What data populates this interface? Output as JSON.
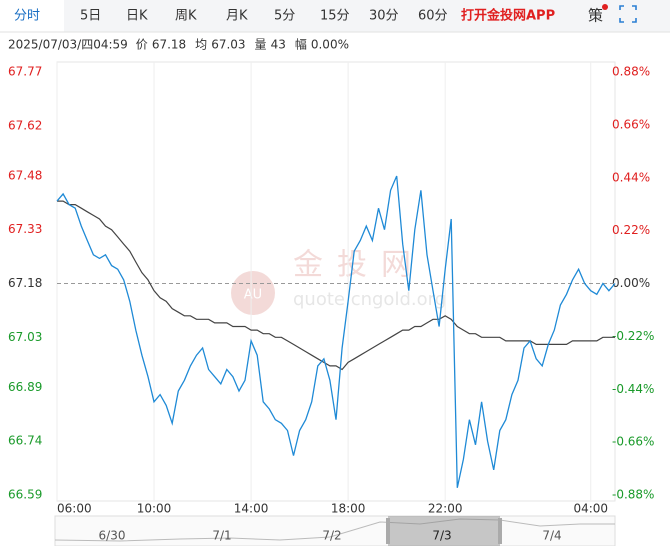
{
  "tabs": [
    "分时",
    "5日",
    "日K",
    "周K",
    "月K",
    "5分",
    "15分",
    "30分",
    "60分"
  ],
  "promo": "打开金投网APP",
  "strategy": "策",
  "info": {
    "date": "2025/07/03/四04:59",
    "fields": [
      {
        "label": "价",
        "value": "67.18"
      },
      {
        "label": "均",
        "value": "67.03"
      },
      {
        "label": "量",
        "value": "43"
      },
      {
        "label": "幅",
        "value": "0.00%"
      }
    ]
  },
  "watermark": {
    "logo": "AU",
    "name": "金投网",
    "site": "quote.cngold.org"
  },
  "navigator": {
    "labels": [
      "6/30",
      "7/1",
      "7/2",
      "7/3",
      "7/4"
    ],
    "selected": 3
  },
  "chart_data": {
    "type": "line",
    "x": [
      "06:00",
      "06:15",
      "06:30",
      "06:45",
      "07:00",
      "07:15",
      "07:30",
      "07:45",
      "08:00",
      "08:15",
      "08:30",
      "08:45",
      "09:00",
      "09:15",
      "09:30",
      "09:45",
      "10:00",
      "10:15",
      "10:30",
      "10:45",
      "11:00",
      "11:15",
      "11:30",
      "11:45",
      "12:00",
      "12:15",
      "12:30",
      "12:45",
      "13:00",
      "13:15",
      "13:30",
      "13:45",
      "14:00",
      "14:15",
      "14:30",
      "14:45",
      "15:00",
      "15:15",
      "15:30",
      "15:45",
      "16:00",
      "16:15",
      "16:30",
      "16:45",
      "17:00",
      "17:15",
      "17:30",
      "17:45",
      "18:00",
      "18:15",
      "18:30",
      "18:45",
      "19:00",
      "19:15",
      "19:30",
      "19:45",
      "20:00",
      "20:15",
      "20:30",
      "20:45",
      "21:00",
      "21:15",
      "21:30",
      "21:45",
      "22:00",
      "22:15",
      "22:30",
      "22:45",
      "23:00",
      "23:15",
      "23:30",
      "23:45",
      "00:00",
      "00:15",
      "00:30",
      "00:45",
      "01:00",
      "01:15",
      "01:30",
      "01:45",
      "02:00",
      "02:15",
      "02:30",
      "02:45",
      "03:00",
      "03:15",
      "03:30",
      "03:45",
      "04:00",
      "04:15",
      "04:30",
      "04:45",
      "05:00"
    ],
    "series": [
      {
        "color": "#1f8ad6",
        "values": [
          67.41,
          67.43,
          67.4,
          67.39,
          67.34,
          67.3,
          67.26,
          67.25,
          67.26,
          67.23,
          67.22,
          67.19,
          67.13,
          67.05,
          66.98,
          66.92,
          66.85,
          66.87,
          66.84,
          66.79,
          66.88,
          66.91,
          66.95,
          66.98,
          67.0,
          66.94,
          66.92,
          66.9,
          66.94,
          66.92,
          66.88,
          66.91,
          67.02,
          66.98,
          66.85,
          66.83,
          66.8,
          66.79,
          66.77,
          66.7,
          66.77,
          66.8,
          66.85,
          66.95,
          66.97,
          66.91,
          66.8,
          67.0,
          67.13,
          67.27,
          67.3,
          67.34,
          67.3,
          67.39,
          67.33,
          67.44,
          67.48,
          67.29,
          67.16,
          67.33,
          67.44,
          67.26,
          67.16,
          67.06,
          67.22,
          67.36,
          66.61,
          66.69,
          66.8,
          66.73,
          66.85,
          66.74,
          66.66,
          66.77,
          66.8,
          66.87,
          66.91,
          67.0,
          67.02,
          66.97,
          66.95,
          67.01,
          67.05,
          67.12,
          67.15,
          67.19,
          67.22,
          67.18,
          67.16,
          67.15,
          67.18,
          67.16,
          67.18
        ]
      },
      {
        "color": "#444444",
        "values": [
          67.41,
          67.41,
          67.4,
          67.4,
          67.39,
          67.38,
          67.37,
          67.36,
          67.34,
          67.33,
          67.31,
          67.29,
          67.27,
          67.24,
          67.21,
          67.19,
          67.16,
          67.14,
          67.13,
          67.11,
          67.1,
          67.09,
          67.09,
          67.08,
          67.08,
          67.08,
          67.07,
          67.07,
          67.07,
          67.06,
          67.06,
          67.06,
          67.05,
          67.05,
          67.04,
          67.04,
          67.03,
          67.03,
          67.02,
          67.01,
          67.0,
          66.99,
          66.98,
          66.97,
          66.96,
          66.95,
          66.95,
          66.94,
          66.96,
          66.97,
          66.98,
          66.99,
          67.0,
          67.01,
          67.02,
          67.03,
          67.04,
          67.05,
          67.05,
          67.06,
          67.06,
          67.07,
          67.08,
          67.08,
          67.09,
          67.08,
          67.06,
          67.05,
          67.04,
          67.04,
          67.03,
          67.03,
          67.03,
          67.03,
          67.02,
          67.02,
          67.02,
          67.02,
          67.02,
          67.01,
          67.01,
          67.01,
          67.01,
          67.01,
          67.01,
          67.02,
          67.02,
          67.02,
          67.02,
          67.02,
          67.03,
          67.03,
          67.03
        ]
      }
    ],
    "xlim": [
      "06:00",
      "05:00"
    ],
    "xticks": [
      "06:00",
      "10:00",
      "14:00",
      "18:00",
      "22:00",
      "04:00"
    ],
    "ylim": [
      66.59,
      67.77
    ],
    "yticks": [
      67.77,
      67.62,
      67.48,
      67.33,
      67.18,
      67.03,
      66.89,
      66.74,
      66.59
    ],
    "y2lim": [
      -0.88,
      0.88
    ],
    "y2ticks": [
      {
        "value": 0.88,
        "label": "0.88%"
      },
      {
        "value": 0.66,
        "label": "0.66%"
      },
      {
        "value": 0.44,
        "label": "0.44%"
      },
      {
        "value": 0.22,
        "label": "0.22%"
      },
      {
        "value": 0,
        "label": "0.00%"
      },
      {
        "value": -0.22,
        "label": "-0.22%"
      },
      {
        "value": -0.44,
        "label": "-0.44%"
      },
      {
        "value": -0.66,
        "label": "-0.66%"
      },
      {
        "value": -0.88,
        "label": "-0.88%"
      }
    ],
    "baseline": 67.18,
    "grid": true,
    "up_color": "#e02020",
    "down_color": "#1a9a2a",
    "flat_color": "#333333"
  }
}
